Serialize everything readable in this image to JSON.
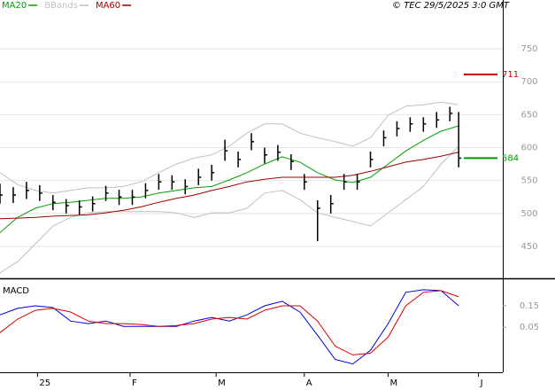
{
  "chart_data": [
    {
      "type": "stock",
      "copyright": "© TEC 29/5/2025 3:0 GMT",
      "xlim": [
        0,
        114
      ],
      "ylim": [
        403,
        824
      ],
      "yticks": [
        450,
        500,
        550,
        600,
        650,
        700,
        750
      ],
      "grid": true,
      "bars": {
        "color": "#000000",
        "x": [
          0,
          3,
          6,
          9,
          12,
          15,
          18,
          21,
          24,
          27,
          30,
          33,
          36,
          39,
          42,
          45,
          48,
          51,
          54,
          57,
          60,
          63,
          66,
          69,
          72,
          75,
          78,
          81,
          84,
          87,
          90,
          93,
          96,
          99,
          102,
          104
        ],
        "high": [
          545,
          540,
          548,
          543,
          528,
          522,
          520,
          526,
          542,
          536,
          536,
          546,
          560,
          558,
          552,
          568,
          574,
          612,
          594,
          622,
          600,
          604,
          590,
          560,
          520,
          528,
          560,
          560,
          594,
          626,
          640,
          646,
          646,
          654,
          662,
          654
        ],
        "low": [
          515,
          516,
          522,
          519,
          505,
          500,
          498,
          503,
          519,
          513,
          513,
          523,
          536,
          536,
          529,
          543,
          550,
          580,
          570,
          596,
          576,
          580,
          566,
          536,
          458,
          500,
          536,
          536,
          570,
          602,
          617,
          624,
          624,
          630,
          640,
          570
        ],
        "close": [
          528,
          528,
          535,
          531,
          517,
          512,
          510,
          515,
          531,
          525,
          525,
          535,
          548,
          548,
          541,
          555,
          562,
          595,
          582,
          609,
          589,
          593,
          579,
          548,
          508,
          515,
          548,
          548,
          582,
          615,
          629,
          636,
          636,
          642,
          652,
          584
        ]
      },
      "x": [
        0,
        4,
        8,
        12,
        16,
        20,
        24,
        28,
        32,
        36,
        40,
        44,
        48,
        52,
        56,
        60,
        64,
        68,
        72,
        76,
        80,
        84,
        88,
        92,
        96,
        100,
        104
      ],
      "series": [
        {
          "name": "MA20",
          "color": "#00a000",
          "values": [
            471,
            494,
            508,
            515,
            517,
            520,
            523,
            523,
            525,
            531,
            535,
            539,
            541,
            551,
            562,
            575,
            586,
            578,
            562,
            551,
            547,
            555,
            575,
            595,
            611,
            625,
            633
          ]
        },
        {
          "name": "BBands",
          "color": "#c0c0c0",
          "upper": [
            562,
            544,
            535,
            531,
            535,
            539,
            539,
            541,
            548,
            562,
            575,
            584,
            589,
            602,
            622,
            636,
            636,
            622,
            615,
            609,
            602,
            615,
            649,
            663,
            665,
            669,
            665
          ],
          "lower": [
            410,
            427,
            454,
            481,
            494,
            501,
            503,
            503,
            503,
            503,
            501,
            494,
            501,
            501,
            508,
            531,
            535,
            521,
            501,
            494,
            488,
            481,
            501,
            521,
            541,
            575,
            602
          ]
        },
        {
          "name": "MA60",
          "color": "#a00000",
          "values": [
            492,
            493,
            494,
            496,
            497,
            498,
            501,
            505,
            510,
            517,
            523,
            528,
            535,
            541,
            548,
            552,
            555,
            555,
            555,
            555,
            558,
            564,
            571,
            578,
            582,
            587,
            593
          ]
        }
      ],
      "markers": [
        {
          "value": 711,
          "color": "#cc0000"
        },
        {
          "value": 584,
          "color": "#009900"
        }
      ]
    },
    {
      "type": "line",
      "title": "MACD",
      "xlim": [
        0,
        114
      ],
      "ylim": [
        -0.16,
        0.27
      ],
      "yticks": [
        0.05,
        0.15
      ],
      "x": [
        0,
        4,
        8,
        12,
        16,
        20,
        24,
        28,
        32,
        36,
        40,
        44,
        48,
        52,
        56,
        60,
        64,
        68,
        72,
        76,
        80,
        84,
        88,
        92,
        96,
        100,
        104
      ],
      "xticks": [
        {
          "value": 8.5,
          "label": "25"
        },
        {
          "value": 29.5,
          "label": "F"
        },
        {
          "value": 49,
          "label": "M"
        },
        {
          "value": 69,
          "label": "A"
        },
        {
          "value": 88,
          "label": "M"
        },
        {
          "value": 108.5,
          "label": "J"
        }
      ],
      "series": [
        {
          "color": "#0000dd",
          "values": [
            0.108,
            0.138,
            0.15,
            0.142,
            0.079,
            0.067,
            0.079,
            0.054,
            0.054,
            0.054,
            0.054,
            0.079,
            0.096,
            0.079,
            0.108,
            0.15,
            0.171,
            0.121,
            0.013,
            -0.1,
            -0.121,
            -0.058,
            0.067,
            0.213,
            0.225,
            0.221,
            0.15
          ]
        },
        {
          "color": "#dd0000",
          "values": [
            0.025,
            0.088,
            0.129,
            0.138,
            0.121,
            0.079,
            0.067,
            0.067,
            0.063,
            0.054,
            0.058,
            0.067,
            0.088,
            0.096,
            0.088,
            0.129,
            0.15,
            0.15,
            0.079,
            -0.038,
            -0.079,
            -0.071,
            0.004,
            0.15,
            0.213,
            0.221,
            0.192
          ]
        }
      ]
    }
  ]
}
